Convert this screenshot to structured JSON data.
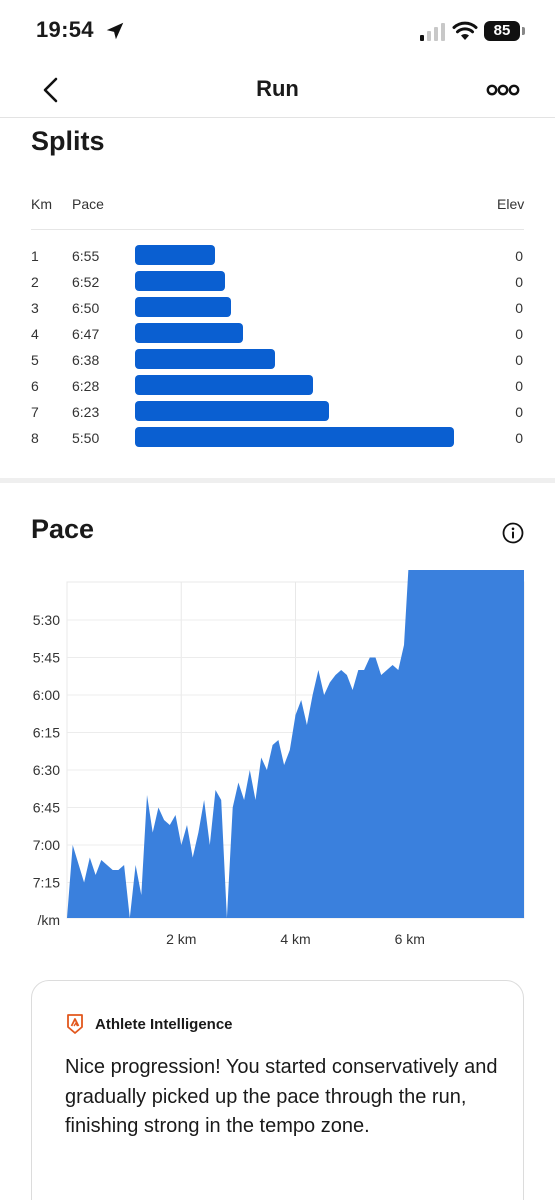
{
  "status_bar": {
    "time": "19:54",
    "battery": "85"
  },
  "nav": {
    "title": "Run"
  },
  "splits": {
    "title": "Splits",
    "headers": {
      "km": "Km",
      "pace": "Pace",
      "elev": "Elev"
    },
    "rows": [
      {
        "km": "1",
        "pace": "6:55",
        "elev": "0"
      },
      {
        "km": "2",
        "pace": "6:52",
        "elev": "0"
      },
      {
        "km": "3",
        "pace": "6:50",
        "elev": "0"
      },
      {
        "km": "4",
        "pace": "6:47",
        "elev": "0"
      },
      {
        "km": "5",
        "pace": "6:38",
        "elev": "0"
      },
      {
        "km": "6",
        "pace": "6:28",
        "elev": "0"
      },
      {
        "km": "7",
        "pace": "6:23",
        "elev": "0"
      },
      {
        "km": "8",
        "pace": "5:50",
        "elev": "0"
      }
    ]
  },
  "pace": {
    "title": "Pace"
  },
  "chart_data": {
    "type": "area",
    "title": "",
    "xlabel": "",
    "ylabel": "",
    "color": "#3a80dd",
    "x_ticks": [
      "2 km",
      "4 km",
      "6 km"
    ],
    "y_ticks": [
      "5:30",
      "5:45",
      "6:00",
      "6:15",
      "6:30",
      "6:45",
      "7:00",
      "7:15",
      "/km"
    ],
    "series": [
      {
        "x": [
          0.0,
          0.1,
          0.3,
          0.4,
          0.5,
          0.6,
          0.8,
          0.9,
          1.0,
          1.1,
          1.2,
          1.3,
          1.4,
          1.5,
          1.6,
          1.7,
          1.8,
          1.9,
          2.0,
          2.1,
          2.2,
          2.3,
          2.4,
          2.5,
          2.6,
          2.7,
          2.8,
          2.9,
          3.0,
          3.1,
          3.2,
          3.3,
          3.4,
          3.5,
          3.6,
          3.7,
          3.8,
          3.9,
          4.0,
          4.1,
          4.2,
          4.3,
          4.4,
          4.5,
          4.6,
          4.7,
          4.8,
          4.9,
          5.0,
          5.1,
          5.2,
          5.3,
          5.4,
          5.5,
          5.6,
          5.7,
          5.8,
          5.9,
          6.0,
          6.1,
          6.2,
          6.3,
          6.4,
          6.5,
          6.6,
          6.7,
          6.8,
          6.9,
          7.0,
          7.1,
          7.2,
          7.3,
          7.4,
          7.5,
          7.6,
          7.7,
          7.8,
          7.9,
          8.0
        ],
        "pace_sec_per_km": [
          480,
          420,
          435,
          425,
          432,
          426,
          430,
          430,
          428,
          480,
          428,
          440,
          400,
          415,
          405,
          410,
          412,
          408,
          420,
          412,
          425,
          415,
          402,
          420,
          398,
          402,
          480,
          405,
          395,
          402,
          390,
          402,
          385,
          390,
          380,
          378,
          388,
          382,
          368,
          362,
          372,
          360,
          350,
          360,
          355,
          352,
          350,
          352,
          358,
          350,
          350,
          345,
          345,
          352,
          350,
          348,
          350,
          340,
          300,
          295,
          290,
          290,
          285,
          280,
          275,
          270,
          265,
          258,
          255,
          250,
          248,
          250,
          250,
          255,
          260,
          262,
          265,
          290,
          300
        ]
      }
    ]
  },
  "athlete_intelligence": {
    "title": "Athlete Intelligence",
    "text": "Nice progression! You started conservatively and gradually picked up the pace through the run, finishing strong in the tempo zone."
  }
}
